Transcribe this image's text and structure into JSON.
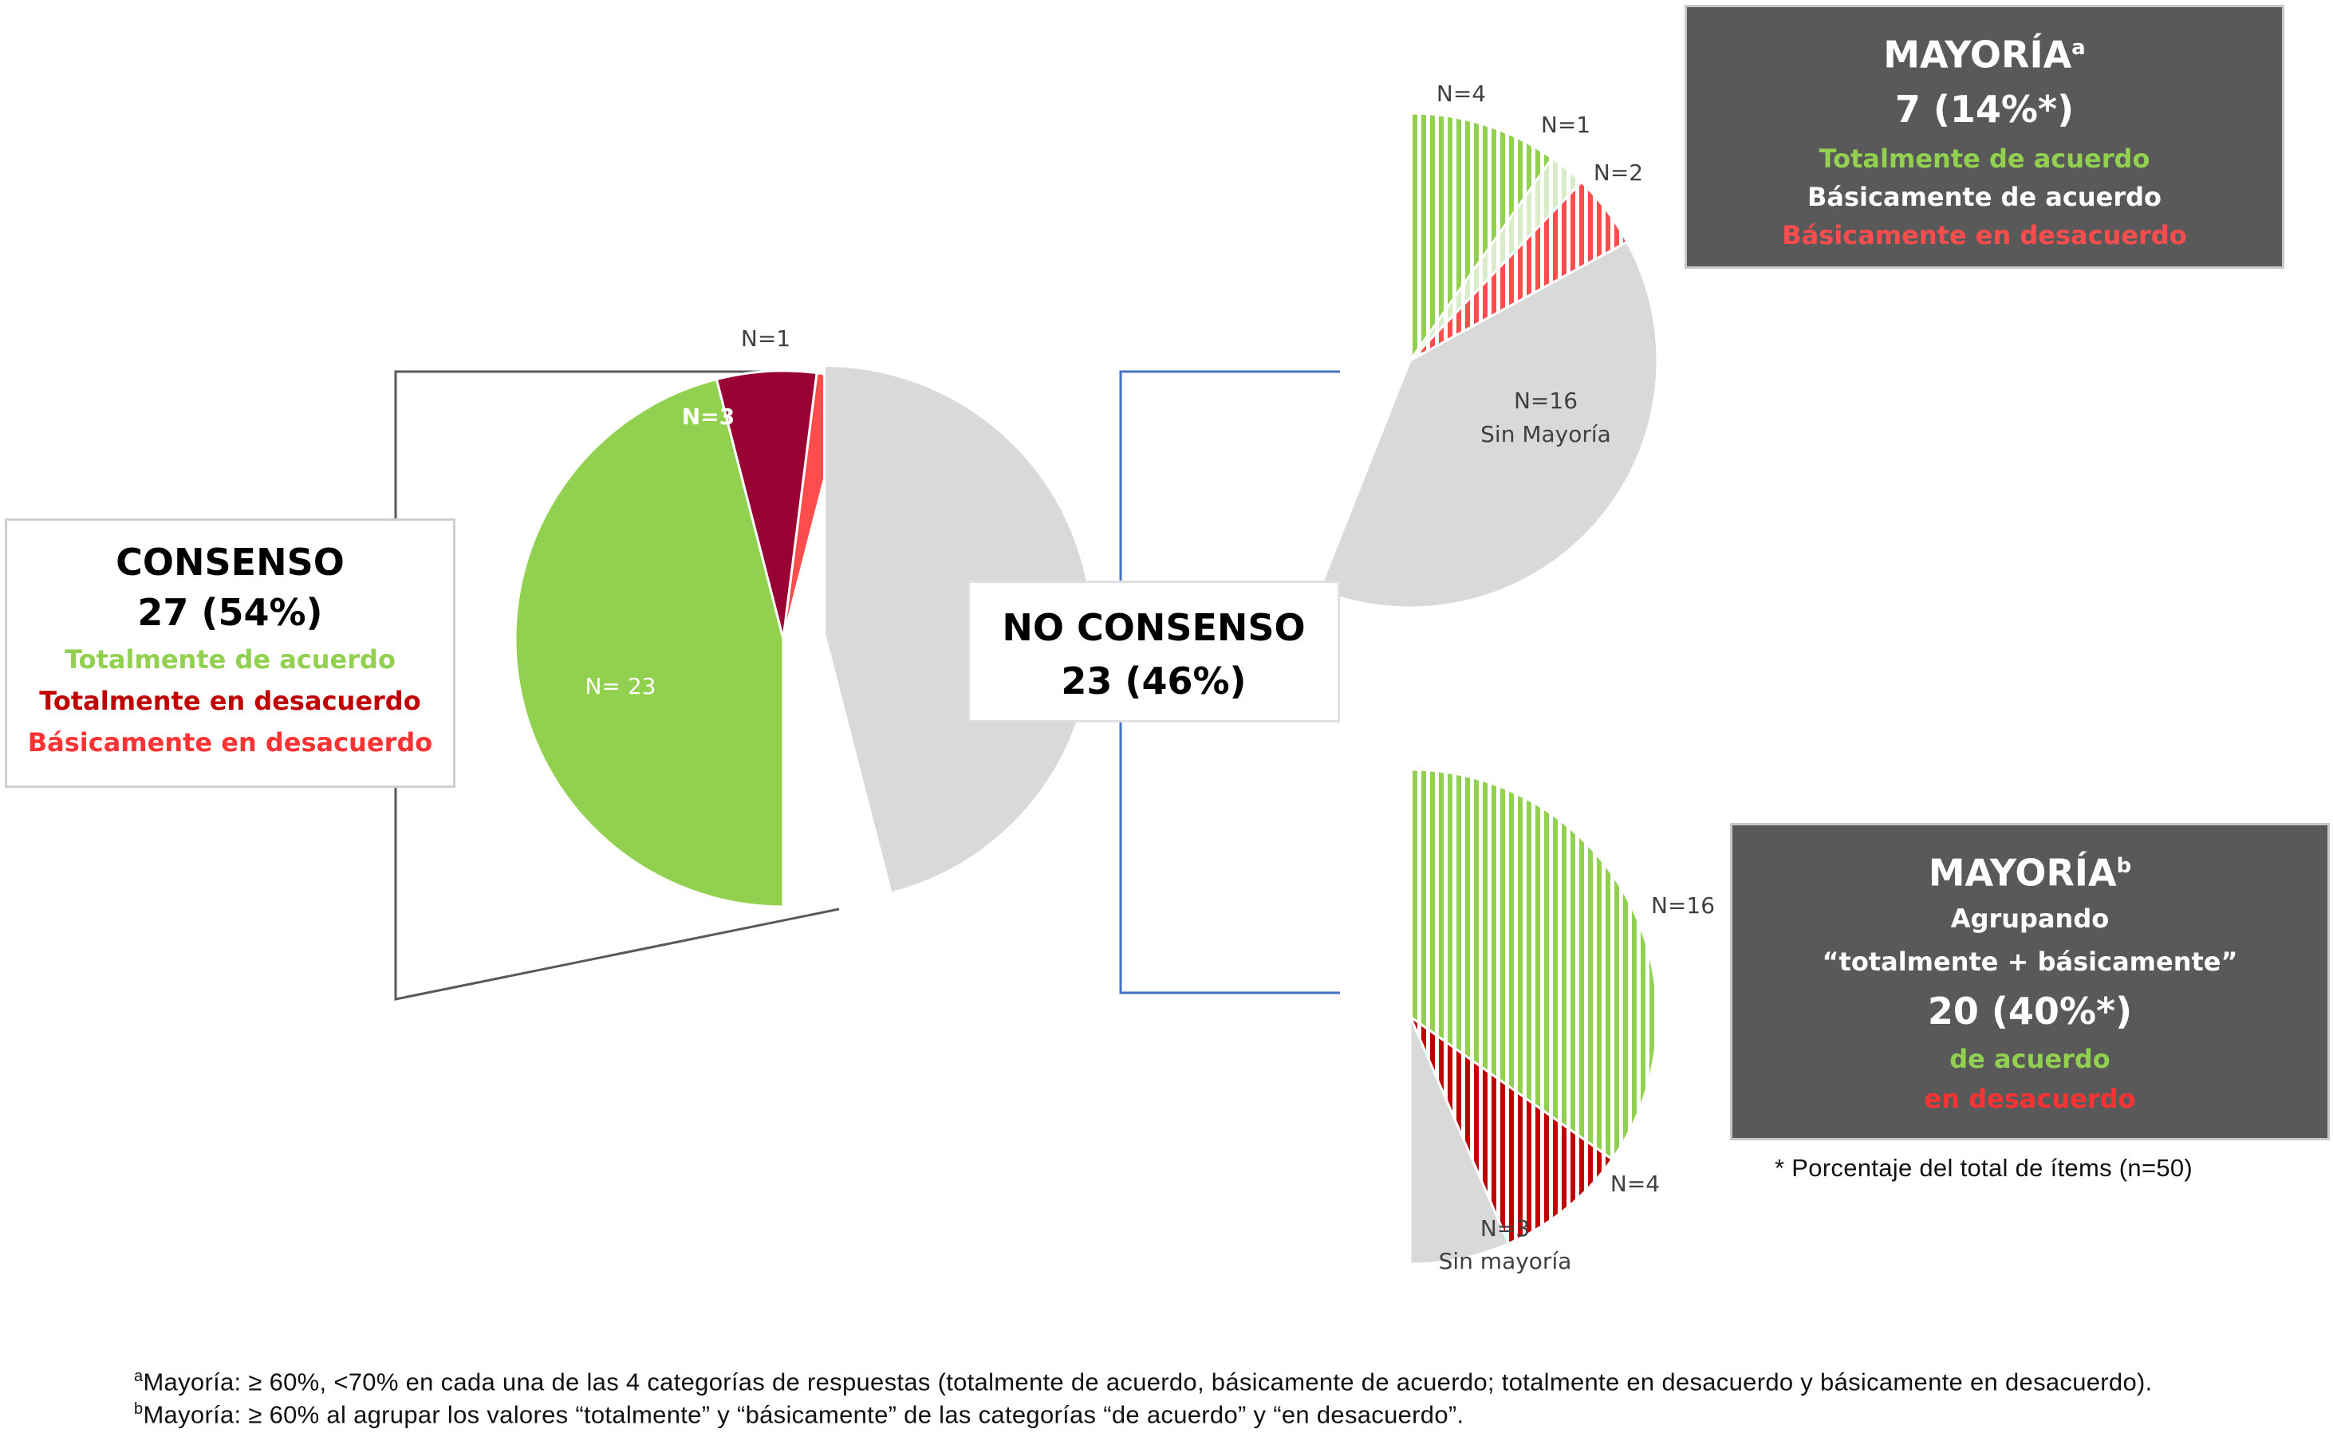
{
  "colors": {
    "green": "#92d050",
    "dark_red": "#990033",
    "red": "#ff4d4d",
    "grey": "#d9d9d9",
    "light_green": "#d8ecc8",
    "hatch_red": "#c00000",
    "box_dark": "#595959",
    "connector_left": "#595959",
    "connector_right": "#4472c4"
  },
  "consenso_box": {
    "title": "CONSENSO",
    "value": "27 (54%)",
    "lines": [
      {
        "text": "Totalmente de acuerdo",
        "color": "#92d050"
      },
      {
        "text": "Totalmente en desacuerdo",
        "color": "#c00000"
      },
      {
        "text": "Básicamente en desacuerdo",
        "color": "#ff3333"
      }
    ]
  },
  "no_consenso_box": {
    "title": "NO CONSENSO",
    "value": "23 (46%)"
  },
  "mayoria_a_box": {
    "title": "MAYORÍA",
    "title_sup": "a",
    "value": "7 (14%*)",
    "lines": [
      {
        "text": "Totalmente de acuerdo",
        "color": "#92d050"
      },
      {
        "text": "Básicamente de acuerdo",
        "color": "#ffffff"
      },
      {
        "text": "Básicamente en desacuerdo",
        "color": "#ff4d4d"
      }
    ]
  },
  "mayoria_b_box": {
    "title": "MAYORÍA",
    "title_sup": "b",
    "subtitle1": "Agrupando",
    "subtitle2": "“totalmente + básicamente”",
    "value": "20 (40%*)",
    "lines": [
      {
        "text": "de acuerdo",
        "color": "#92d050"
      },
      {
        "text": "en desacuerdo",
        "color": "#ff3333"
      }
    ]
  },
  "note": "* Porcentaje del total de ítems (n=50)",
  "footnotes": [
    {
      "sup": "a",
      "text": "Mayoría: ≥ 60%, <70% en cada una de las 4 categorías de respuestas (totalmente de acuerdo, básicamente de acuerdo; totalmente en desacuerdo y básicamente en desacuerdo)."
    },
    {
      "sup": "b",
      "text": "Mayoría: ≥ 60% al agrupar los valores “totalmente” y “básicamente” de las categorías “de acuerdo” y “en desacuerdo”."
    }
  ],
  "chart_data": [
    {
      "type": "pie",
      "slices": [
        {
          "label": "N= 23",
          "value": 23,
          "color": "#92d050",
          "fill": "solid"
        },
        {
          "label": "N=3",
          "value": 3,
          "color": "#990033",
          "fill": "solid"
        },
        {
          "label": "N=1",
          "value": 1,
          "color": "#ff4d4d",
          "fill": "solid"
        },
        {
          "label": "",
          "value": 23,
          "color": "#d9d9d9",
          "fill": "solid",
          "exploded": true
        }
      ]
    },
    {
      "type": "pie",
      "slices": [
        {
          "label": "N=4",
          "value": 4,
          "color": "#92d050",
          "fill": "hatched"
        },
        {
          "label": "N=1",
          "value": 1,
          "color": "#d8ecc8",
          "fill": "hatched"
        },
        {
          "label": "N=2",
          "value": 2,
          "color": "#ff4d4d",
          "fill": "hatched"
        },
        {
          "label": "N=16",
          "sublabel": "Sin Mayoría",
          "value": 16,
          "color": "#d9d9d9",
          "fill": "solid"
        }
      ]
    },
    {
      "type": "pie",
      "slices": [
        {
          "label": "N=16",
          "value": 16,
          "color": "#92d050",
          "fill": "hatched"
        },
        {
          "label": "N=4",
          "value": 4,
          "color": "#c00000",
          "fill": "hatched"
        },
        {
          "label": "N=3",
          "sublabel": "Sin mayoría",
          "value": 3,
          "color": "#d9d9d9",
          "fill": "solid"
        }
      ]
    }
  ]
}
